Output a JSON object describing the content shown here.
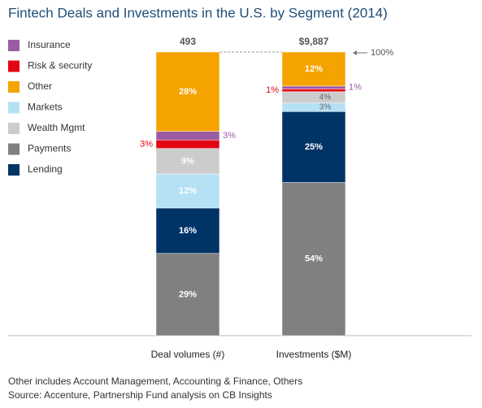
{
  "chart_data": {
    "type": "stacked-bar-100",
    "title": "Fintech Deals and Investments in the U.S. by Segment (2014)",
    "categories": [
      "Deal volumes (#)",
      "Investments ($M)"
    ],
    "totals": [
      493,
      9887
    ],
    "totals_labels": [
      "493",
      "$9,887"
    ],
    "annotation": "100%",
    "ylim": [
      0,
      100
    ],
    "series": [
      {
        "name": "Insurance",
        "color": "#9b5ba5",
        "values": [
          3,
          1
        ],
        "value_labels": [
          "3%",
          "1%"
        ]
      },
      {
        "name": "Risk & security",
        "color": "#e30613",
        "values": [
          3,
          1
        ],
        "value_labels": [
          "3%",
          "1%"
        ]
      },
      {
        "name": "Other",
        "color": "#f5a300",
        "values": [
          28,
          12
        ],
        "value_labels": [
          "28%",
          "12%"
        ]
      },
      {
        "name": "Markets",
        "color": "#b5e1f5",
        "values": [
          12,
          3
        ],
        "value_labels": [
          "12%",
          "3%"
        ]
      },
      {
        "name": "Wealth Mgmt",
        "color": "#cccccc",
        "values": [
          9,
          4
        ],
        "value_labels": [
          "9%",
          "4%"
        ]
      },
      {
        "name": "Payments",
        "color": "#808080",
        "values": [
          29,
          54
        ],
        "value_labels": [
          "29%",
          "54%"
        ]
      },
      {
        "name": "Lending",
        "color": "#003366",
        "values": [
          16,
          25
        ],
        "value_labels": [
          "16%",
          "25%"
        ]
      }
    ],
    "footnotes": [
      "Other includes Account Management, Accounting & Finance, Others",
      "Source: Accenture, Partnership Fund analysis on CB Insights"
    ]
  }
}
